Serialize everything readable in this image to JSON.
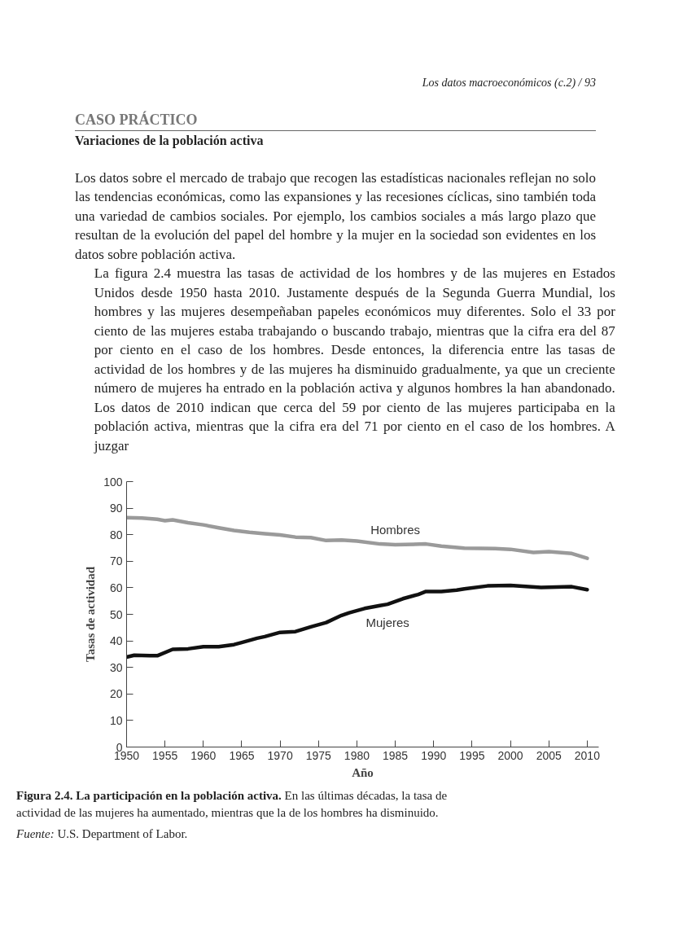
{
  "chart_data": {
    "type": "line",
    "title": "Figura 2.4. La participación en la población activa.",
    "subtitle": "En las últimas décadas, la tasa de actividad de las mujeres ha aumentado, mientras que la de los hombres ha disminuido.",
    "xlabel": "Año",
    "ylabel": "Tasas de actividad",
    "annotations": [
      "Los datos macroeconómicos (c.2) / 93",
      "CASO PRÁCTICO",
      "Variaciones de la población activa",
      "Los datos sobre el mercado de trabajo que recogen las estadísticas nacionales reflejan no solo las tendencias económicas, como las expansiones y las recesiones cíclicas, sino también toda una variedad de cambios sociales. Por ejemplo, los cambios sociales a más largo plazo que resultan de la evolución del papel del hombre y la mujer en la sociedad son evidentes en los datos sobre población activa.",
      "La figura 2.4 muestra las tasas de actividad de los hombres y de las mujeres en Estados Unidos desde 1950 hasta 2010. Justamente después de la Segunda Guerra Mundial, los hombres y las mujeres desempeñaban papeles económicos muy diferentes. Solo el 33 por ciento de las mujeres estaba trabajando o buscando trabajo, mientras que la cifra era del 87 por ciento en el caso de los hombres. Desde entonces, la diferencia entre las tasas de actividad de los hombres y de las mujeres ha disminuido gradualmente, ya que un creciente número de mujeres ha entrado en la población activa y algunos hombres la han abandonado. Los datos de 2010 indican que cerca del 59 por ciento de las mujeres participaba en la población activa, mientras que la cifra era del 71 por ciento en el caso de los hombres. A juzgar",
      "Fuente: U.S. Department of Labor."
    ],
    "xlim": [
      1950,
      2011.5
    ],
    "xticks": [
      1950,
      1955,
      1960,
      1965,
      1970,
      1975,
      1980,
      1985,
      1990,
      1995,
      2000,
      2005,
      2010
    ],
    "ylim": [
      0,
      100
    ],
    "yticks": [
      0,
      10,
      20,
      30,
      40,
      50,
      60,
      70,
      80,
      90,
      100
    ],
    "grid": false,
    "legend": false,
    "marker": "none",
    "line_style": "solid",
    "series": [
      {
        "name": "Hombres",
        "color": "#9a9a9a",
        "x": [
          1950,
          1952,
          1954,
          1955,
          1956,
          1958,
          1960,
          1962,
          1964,
          1966,
          1968,
          1970,
          1972,
          1974,
          1976,
          1978,
          1980,
          1983,
          1985,
          1989,
          1991,
          1994,
          1998,
          2000,
          2003,
          2005,
          2008,
          2010
        ],
        "values": [
          86.4,
          86.3,
          85.8,
          85.3,
          85.6,
          84.5,
          83.7,
          82.6,
          81.6,
          80.9,
          80.4,
          79.9,
          79.1,
          78.9,
          77.8,
          78.0,
          77.6,
          76.5,
          76.2,
          76.5,
          75.7,
          74.9,
          74.8,
          74.5,
          73.3,
          73.6,
          72.9,
          71.1
        ]
      },
      {
        "name": "Mujeres",
        "color": "#111111",
        "x": [
          1950,
          1951,
          1953,
          1954,
          1956,
          1958,
          1960,
          1962,
          1964,
          1965,
          1967,
          1968,
          1970,
          1972,
          1974,
          1976,
          1978,
          1979,
          1981,
          1983,
          1984,
          1986,
          1988,
          1989,
          1991,
          1993,
          1994,
          1997,
          2000,
          2004,
          2008,
          2010
        ],
        "values": [
          33.9,
          34.6,
          34.4,
          34.4,
          36.8,
          37.0,
          37.8,
          37.8,
          38.6,
          39.4,
          41.0,
          41.6,
          43.2,
          43.5,
          45.3,
          46.9,
          49.6,
          50.6,
          52.2,
          53.3,
          53.8,
          55.9,
          57.5,
          58.6,
          58.6,
          59.1,
          59.6,
          60.7,
          60.9,
          60.1,
          60.4,
          59.3
        ]
      }
    ]
  }
}
